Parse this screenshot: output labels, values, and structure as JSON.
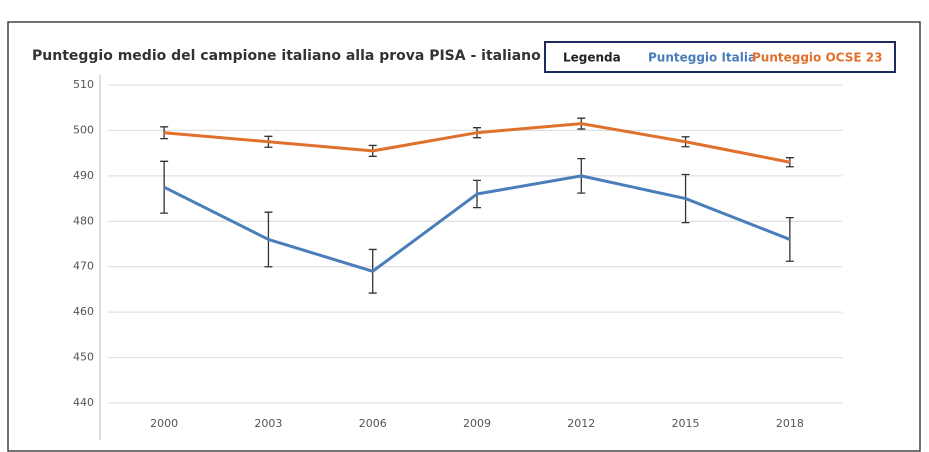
{
  "chart_data": {
    "type": "line",
    "title": "Punteggio medio del campione italiano alla prova PISA - italiano",
    "legend_title": "Legenda",
    "categories": [
      "2000",
      "2003",
      "2006",
      "2009",
      "2012",
      "2015",
      "2018"
    ],
    "series": [
      {
        "name": "Punteggio Italia",
        "color": "#4a7ebb",
        "values": [
          487.5,
          476,
          469,
          486,
          490,
          485,
          476
        ],
        "errors": [
          5.7,
          6,
          4.8,
          3,
          3.8,
          5.3,
          4.8
        ]
      },
      {
        "name": "Punteggio OCSE 23",
        "color": "#e0712c",
        "values": [
          499.5,
          497.5,
          495.5,
          499.5,
          501.5,
          497.5,
          493
        ],
        "errors": [
          1.3,
          1.2,
          1.2,
          1.1,
          1.2,
          1.1,
          1
        ]
      }
    ],
    "ylim": [
      440,
      510
    ],
    "yticks": [
      440,
      450,
      460,
      470,
      480,
      490,
      500,
      510
    ],
    "grid": true,
    "legend": "top-right"
  }
}
